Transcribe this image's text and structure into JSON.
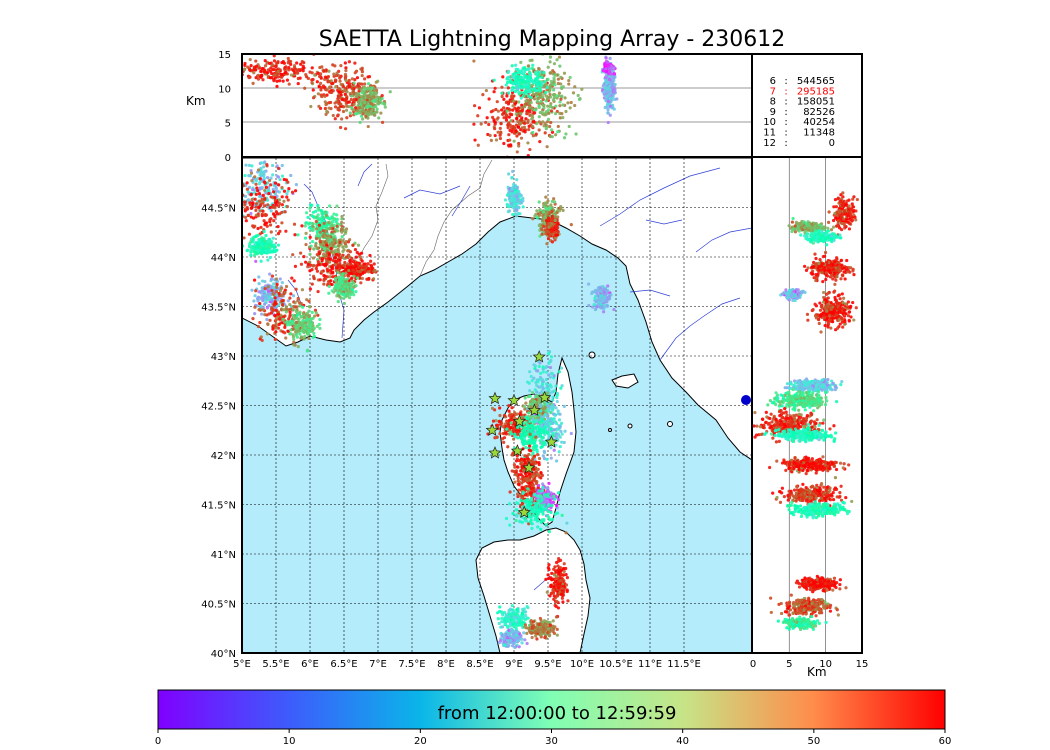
{
  "figure": {
    "title": "SAETTA Lightning Mapping Array - 230612"
  },
  "chart_data": {
    "type": "scatter",
    "title": "SAETTA Lightning Mapping Array - 230612",
    "map": {
      "lon_range": [
        5,
        12.5
      ],
      "lat_range": [
        40,
        45
      ],
      "x_ticks": [
        "5°E",
        "5.5°E",
        "6°E",
        "6.5°E",
        "7°E",
        "7.5°E",
        "8°E",
        "8.5°E",
        "9°E",
        "9.5°E",
        "10°E",
        "10.5°E",
        "11°E",
        "11.5°E"
      ],
      "y_ticks": [
        "40°N",
        "40.5°N",
        "41°N",
        "41.5°N",
        "42°N",
        "42.5°N",
        "43°N",
        "43.5°N",
        "44°N",
        "44.5°N"
      ],
      "grid": true,
      "sea_color": "#b5ecfb",
      "land_color": "#ffffff"
    },
    "altitude_panel": {
      "ylabel": "Km",
      "ylim": [
        0,
        15
      ],
      "y_ticks": [
        "0",
        "5",
        "10",
        "15"
      ]
    },
    "side_panel": {
      "xlabel": "Km",
      "xlim": [
        0,
        15
      ],
      "x_ticks": [
        "0",
        "5",
        "10",
        "15"
      ]
    },
    "station_counts": [
      {
        "stations": "6",
        "sep": ":",
        "count": "544565",
        "highlight": false
      },
      {
        "stations": "7",
        "sep": ":",
        "count": "295185",
        "highlight": true
      },
      {
        "stations": "8",
        "sep": ":",
        "count": "158051",
        "highlight": false
      },
      {
        "stations": "9",
        "sep": ":",
        "count": "82526",
        "highlight": false
      },
      {
        "stations": "10",
        "sep": ":",
        "count": "40254",
        "highlight": false
      },
      {
        "stations": "11",
        "sep": ":",
        "count": "11348",
        "highlight": false
      },
      {
        "stations": "12",
        "sep": ":",
        "count": "0",
        "highlight": false
      }
    ],
    "highlight_color": "#ff0000",
    "colorbar": {
      "label": "from 12:00:00 to 12:59:59",
      "range": [
        0,
        60
      ],
      "ticks": [
        "0",
        "10",
        "20",
        "30",
        "40",
        "50",
        "60"
      ],
      "colormap": "rainbow"
    },
    "map_clusters": [
      {
        "lon": 5.3,
        "lat": 44.7,
        "spread": [
          0.2,
          0.15
        ],
        "t": 18
      },
      {
        "lon": 5.3,
        "lat": 44.5,
        "spread": [
          0.25,
          0.18
        ],
        "t": 57
      },
      {
        "lon": 5.3,
        "lat": 44.1,
        "spread": [
          0.1,
          0.05
        ],
        "t": 30
      },
      {
        "lon": 6.2,
        "lat": 44.3,
        "spread": [
          0.12,
          0.1
        ],
        "t": 35
      },
      {
        "lon": 6.3,
        "lat": 44.15,
        "spread": [
          0.15,
          0.1
        ],
        "t": 48
      },
      {
        "lon": 6.3,
        "lat": 43.9,
        "spread": [
          0.2,
          0.12
        ],
        "t": 58
      },
      {
        "lon": 6.7,
        "lat": 43.87,
        "spread": [
          0.12,
          0.05
        ],
        "t": 58
      },
      {
        "lon": 6.5,
        "lat": 43.7,
        "spread": [
          0.08,
          0.05
        ],
        "t": 40
      },
      {
        "lon": 5.4,
        "lat": 43.6,
        "spread": [
          0.1,
          0.1
        ],
        "t": 15
      },
      {
        "lon": 5.6,
        "lat": 43.45,
        "spread": [
          0.2,
          0.15
        ],
        "t": 55
      },
      {
        "lon": 5.9,
        "lat": 43.3,
        "spread": [
          0.1,
          0.08
        ],
        "t": 42
      },
      {
        "lon": 9.0,
        "lat": 44.6,
        "spread": [
          0.05,
          0.08
        ],
        "t": 20
      },
      {
        "lon": 9.5,
        "lat": 44.4,
        "spread": [
          0.08,
          0.08
        ],
        "t": 45
      },
      {
        "lon": 9.55,
        "lat": 44.3,
        "spread": [
          0.05,
          0.06
        ],
        "t": 55
      },
      {
        "lon": 9.45,
        "lat": 42.6,
        "spread": [
          0.1,
          0.2
        ],
        "t": 20
      },
      {
        "lon": 9.35,
        "lat": 42.45,
        "spread": [
          0.1,
          0.08
        ],
        "t": 45
      },
      {
        "lon": 9.5,
        "lat": 42.25,
        "spread": [
          0.12,
          0.12
        ],
        "t": 18
      },
      {
        "lon": 9.0,
        "lat": 42.3,
        "spread": [
          0.15,
          0.08
        ],
        "t": 57
      },
      {
        "lon": 9.25,
        "lat": 42.2,
        "spread": [
          0.12,
          0.08
        ],
        "t": 30
      },
      {
        "lon": 9.2,
        "lat": 41.85,
        "spread": [
          0.1,
          0.1
        ],
        "t": 57
      },
      {
        "lon": 9.25,
        "lat": 41.6,
        "spread": [
          0.1,
          0.1
        ],
        "t": 56
      },
      {
        "lon": 9.45,
        "lat": 41.55,
        "spread": [
          0.08,
          0.06
        ],
        "t": 8
      },
      {
        "lon": 9.3,
        "lat": 41.45,
        "spread": [
          0.15,
          0.08
        ],
        "t": 28
      },
      {
        "lon": 9.65,
        "lat": 40.7,
        "spread": [
          0.06,
          0.12
        ],
        "t": 58
      },
      {
        "lon": 9.0,
        "lat": 40.35,
        "spread": [
          0.1,
          0.05
        ],
        "t": 25
      },
      {
        "lon": 9.4,
        "lat": 40.25,
        "spread": [
          0.1,
          0.04
        ],
        "t": 50
      },
      {
        "lon": 8.95,
        "lat": 40.15,
        "spread": [
          0.08,
          0.04
        ],
        "t": 15
      },
      {
        "lon": 10.3,
        "lat": 43.6,
        "spread": [
          0.06,
          0.06
        ],
        "t": 15
      }
    ],
    "altitude_clusters": [
      {
        "lon": 5.5,
        "alt": 12.5,
        "spread": [
          0.35,
          1.8
        ],
        "t": 58
      },
      {
        "lon": 6.5,
        "alt": 9.5,
        "spread": [
          0.25,
          3.5
        ],
        "t": 55
      },
      {
        "lon": 6.85,
        "alt": 8.0,
        "spread": [
          0.1,
          2.5
        ],
        "t": 45
      },
      {
        "lon": 9.0,
        "alt": 6.0,
        "spread": [
          0.25,
          5.0
        ],
        "t": 57
      },
      {
        "lon": 9.45,
        "alt": 9.0,
        "spread": [
          0.2,
          5.0
        ],
        "t": 46
      },
      {
        "lon": 9.15,
        "alt": 11.0,
        "spread": [
          0.15,
          2.0
        ],
        "t": 28
      },
      {
        "lon": 10.4,
        "alt": 10.0,
        "spread": [
          0.04,
          3.0
        ],
        "t": 15
      },
      {
        "lon": 10.4,
        "alt": 13.0,
        "spread": [
          0.04,
          1.0
        ],
        "t": 6
      }
    ],
    "profile_clusters": [
      {
        "alt": 12.5,
        "lat": 44.45,
        "spread": [
          1.5,
          0.15
        ],
        "t": 57
      },
      {
        "alt": 7.5,
        "lat": 44.3,
        "spread": [
          2.0,
          0.05
        ],
        "t": 45
      },
      {
        "alt": 9.5,
        "lat": 44.2,
        "spread": [
          2.0,
          0.05
        ],
        "t": 28
      },
      {
        "alt": 10.5,
        "lat": 43.88,
        "spread": [
          2.5,
          0.1
        ],
        "t": 58
      },
      {
        "alt": 5.5,
        "lat": 43.62,
        "spread": [
          1.2,
          0.05
        ],
        "t": 14
      },
      {
        "alt": 11.0,
        "lat": 43.45,
        "spread": [
          2.5,
          0.15
        ],
        "t": 57
      },
      {
        "alt": 8.5,
        "lat": 42.7,
        "spread": [
          3.0,
          0.06
        ],
        "t": 18
      },
      {
        "alt": 6.5,
        "lat": 42.55,
        "spread": [
          3.5,
          0.08
        ],
        "t": 38
      },
      {
        "alt": 5.0,
        "lat": 42.3,
        "spread": [
          4.5,
          0.12
        ],
        "t": 57
      },
      {
        "alt": 7.0,
        "lat": 42.2,
        "spread": [
          3.5,
          0.06
        ],
        "t": 28
      },
      {
        "alt": 8.0,
        "lat": 41.9,
        "spread": [
          4.0,
          0.06
        ],
        "t": 58
      },
      {
        "alt": 8.0,
        "lat": 41.6,
        "spread": [
          3.5,
          0.08
        ],
        "t": 56
      },
      {
        "alt": 9.0,
        "lat": 41.45,
        "spread": [
          3.5,
          0.06
        ],
        "t": 30
      },
      {
        "alt": 9.0,
        "lat": 40.7,
        "spread": [
          2.5,
          0.06
        ],
        "t": 58
      },
      {
        "alt": 7.5,
        "lat": 40.47,
        "spread": [
          3.0,
          0.08
        ],
        "t": 54
      },
      {
        "alt": 6.5,
        "lat": 40.3,
        "spread": [
          2.0,
          0.05
        ],
        "t": 35
      }
    ],
    "stations": [
      [
        9.37,
        42.99
      ],
      [
        8.72,
        42.57
      ],
      [
        9.0,
        42.55
      ],
      [
        9.45,
        42.58
      ],
      [
        9.3,
        42.45
      ],
      [
        8.68,
        42.25
      ],
      [
        9.08,
        42.34
      ],
      [
        9.55,
        42.13
      ],
      [
        8.72,
        42.02
      ],
      [
        9.05,
        42.04
      ],
      [
        9.22,
        41.87
      ],
      [
        9.15,
        41.42
      ]
    ],
    "station_marker_color": "#9ad93b"
  }
}
